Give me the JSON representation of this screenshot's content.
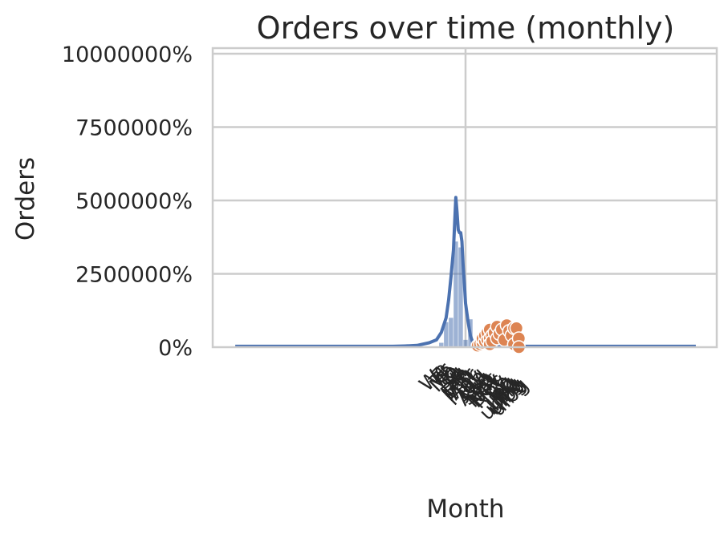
{
  "chart_data": {
    "type": "bar",
    "title": "Orders over time (monthly)",
    "xlabel": "Month",
    "ylabel": "Orders",
    "ylim": [
      0,
      10000000
    ],
    "yticks": [
      0,
      2500000,
      5000000,
      7500000,
      10000000
    ],
    "ytick_labels": [
      "0%",
      "2500000%",
      "5000000%",
      "7500000%",
      "10000000%"
    ],
    "xlim": [
      -1.0,
      1.0
    ],
    "grid": true,
    "series": [
      {
        "type": "bar",
        "x": [
          -0.1,
          -0.08,
          -0.06,
          -0.04,
          -0.02,
          0.0,
          0.02
        ],
        "values": [
          150000,
          850000,
          1000000,
          3600000,
          3400000,
          250000,
          950000
        ]
      },
      {
        "type": "line",
        "x": [
          -0.95,
          -0.6,
          -0.4,
          -0.3,
          -0.25,
          -0.2,
          -0.15,
          -0.12,
          -0.1,
          -0.08,
          -0.07,
          -0.06,
          -0.05,
          -0.045,
          -0.04,
          -0.035,
          -0.03,
          -0.025,
          -0.02,
          -0.015,
          -0.01,
          -0.005,
          0.0,
          0.01,
          0.02,
          0.03,
          0.04,
          0.05,
          0.08,
          0.12,
          0.2,
          0.5,
          0.95
        ],
        "values": [
          30000,
          30000,
          30000,
          30000,
          40000,
          60000,
          150000,
          250000,
          500000,
          1000000,
          1600000,
          2400000,
          3300000,
          4200000,
          5100000,
          4600000,
          4000000,
          3900000,
          3900000,
          3600000,
          2800000,
          2200000,
          1500000,
          900000,
          400000,
          150000,
          60000,
          40000,
          30000,
          30000,
          30000,
          30000,
          30000
        ]
      },
      {
        "type": "scatter",
        "x": [
          0.05,
          0.06,
          0.07,
          0.07,
          0.08,
          0.08,
          0.09,
          0.09,
          0.1,
          0.1,
          0.1,
          0.11,
          0.11,
          0.12,
          0.13,
          0.13,
          0.14,
          0.15,
          0.16,
          0.17,
          0.18,
          0.19,
          0.2,
          0.2,
          0.21,
          0.22,
          0.22
        ],
        "values": [
          50000,
          100000,
          150000,
          300000,
          200000,
          400000,
          250000,
          500000,
          300000,
          100000,
          600000,
          400000,
          200000,
          500000,
          300000,
          700000,
          450000,
          600000,
          250000,
          750000,
          550000,
          400000,
          650000,
          100000,
          650000,
          300000,
          0
        ]
      }
    ],
    "xtick_labels": [
      "We",
      "Fr",
      "Th",
      "Mo",
      "Sa",
      "Tu",
      "Su",
      "Jan",
      "Feb",
      "Mar",
      "Apr",
      "May",
      "Jun",
      "Jul",
      "Aug",
      "Sep",
      "Oct",
      "Nov",
      "Dec",
      "Nov",
      "ub",
      "ug",
      "ing",
      "ubg",
      "ubng",
      "uibg",
      "ulbg"
    ]
  }
}
